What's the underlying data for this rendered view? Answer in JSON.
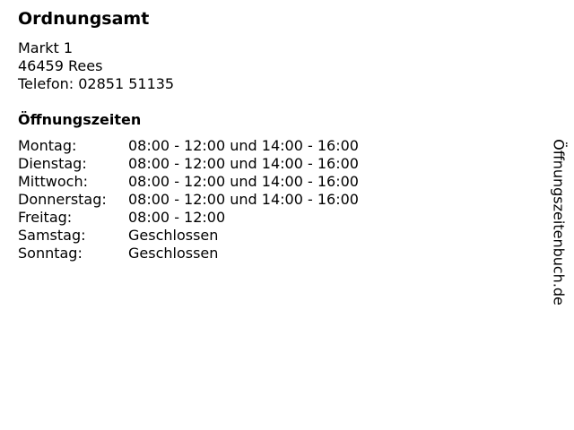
{
  "title": "Ordnungsamt",
  "address": {
    "street": "Markt 1",
    "city": "46459 Rees",
    "phone": "Telefon: 02851 51135"
  },
  "hours_heading": "Öffnungszeiten",
  "hours": [
    {
      "day": "Montag:",
      "time": "08:00 - 12:00 und 14:00 - 16:00"
    },
    {
      "day": "Dienstag:",
      "time": "08:00 - 12:00 und 14:00 - 16:00"
    },
    {
      "day": "Mittwoch:",
      "time": "08:00 - 12:00 und 14:00 - 16:00"
    },
    {
      "day": "Donnerstag:",
      "time": "08:00 - 12:00 und 14:00 - 16:00"
    },
    {
      "day": "Freitag:",
      "time": "08:00 - 12:00"
    },
    {
      "day": "Samstag:",
      "time": "Geschlossen"
    },
    {
      "day": "Sonntag:",
      "time": "Geschlossen"
    }
  ],
  "brand": "Öffnungszeitenbuch.de"
}
